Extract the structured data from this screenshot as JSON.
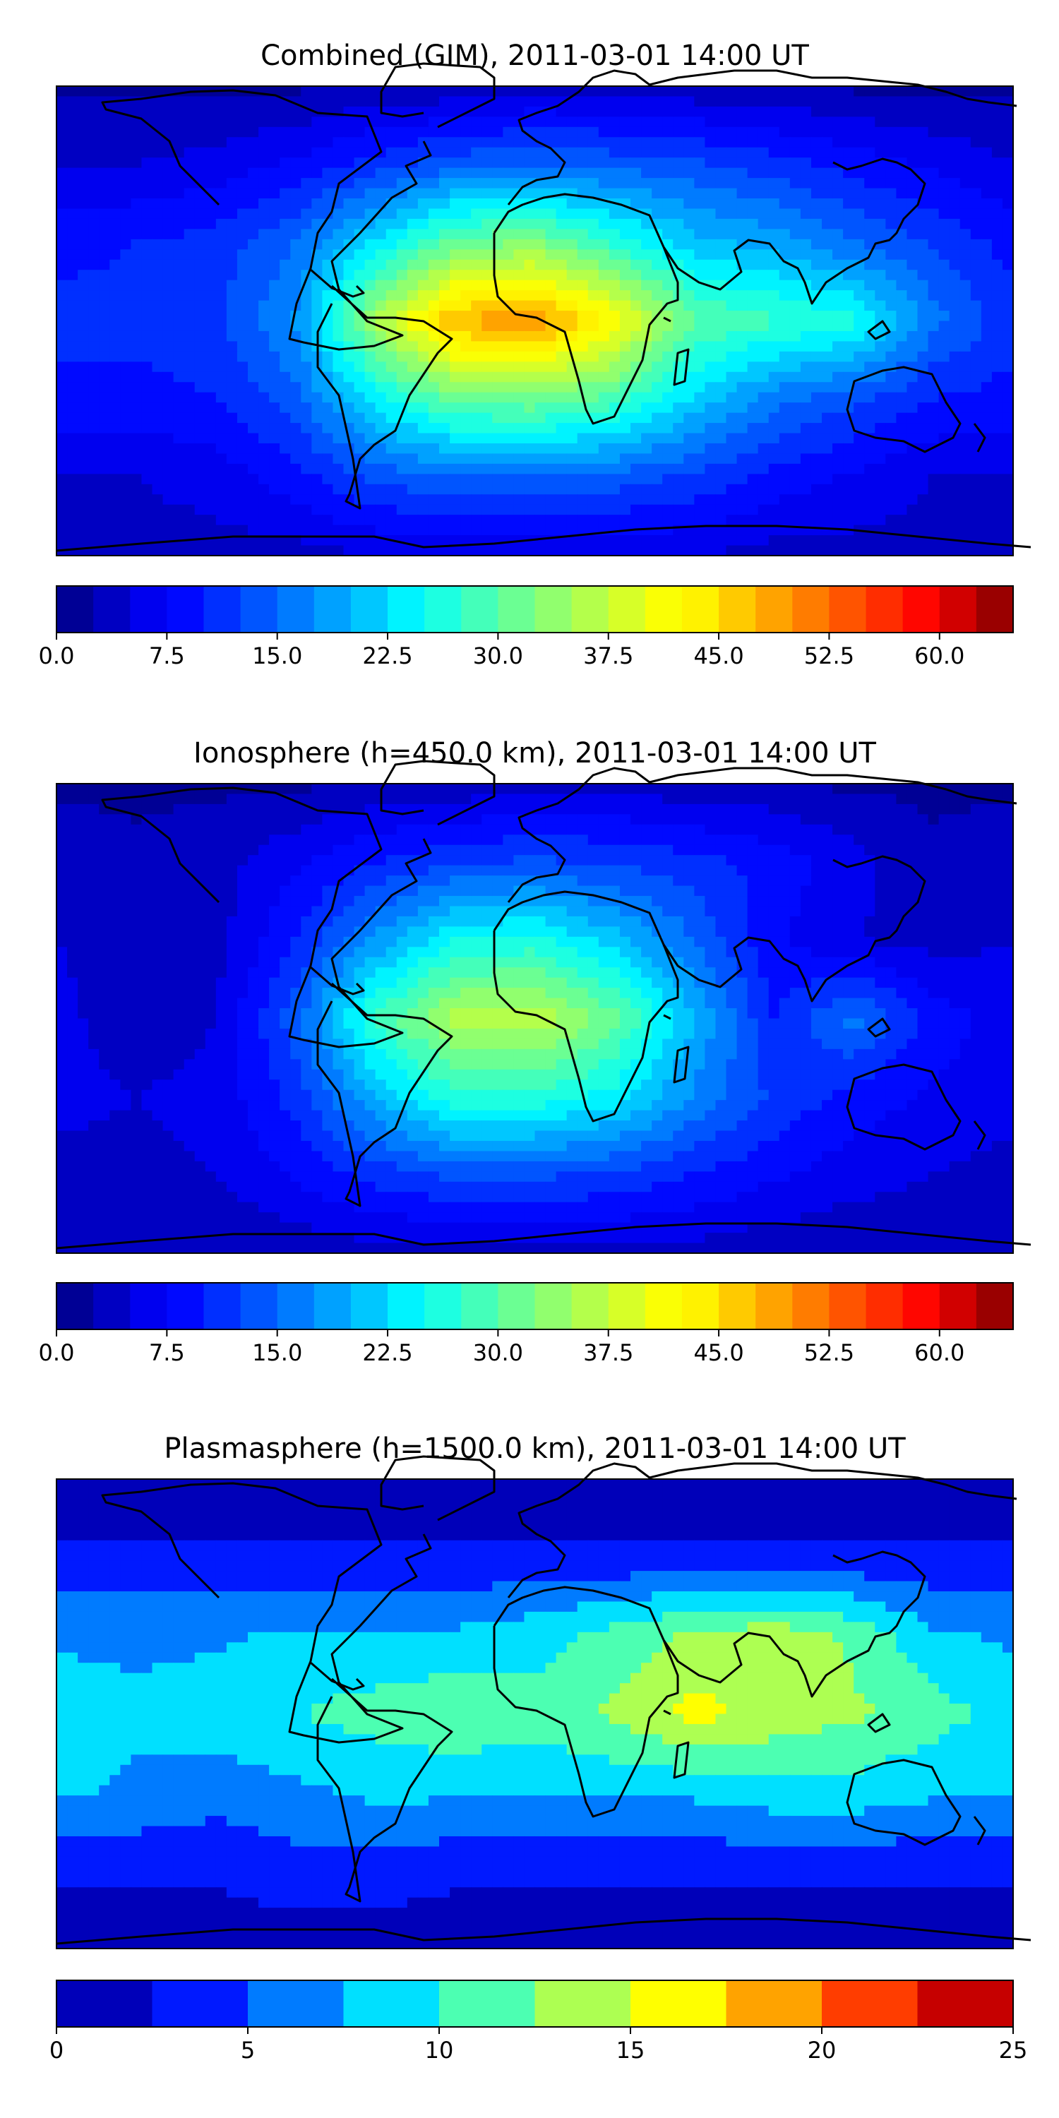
{
  "figure": {
    "panels": [
      {
        "title": "Combined (GIM), 2011-03-01 14:00 UT",
        "colorbar_ticks": [
          "0.0",
          "7.5",
          "15.0",
          "22.5",
          "30.0",
          "37.5",
          "45.0",
          "52.5",
          "60.0"
        ]
      },
      {
        "title": "Ionosphere  (h=450.0 km), 2011-03-01 14:00 UT",
        "colorbar_ticks": [
          "0.0",
          "7.5",
          "15.0",
          "22.5",
          "30.0",
          "37.5",
          "45.0",
          "52.5",
          "60.0"
        ]
      },
      {
        "title": "Plasmasphere (h=1500.0 km), 2011-03-01 14:00 UT",
        "colorbar_ticks": [
          "0",
          "5",
          "10",
          "15",
          "20",
          "25"
        ]
      }
    ]
  },
  "chart_data": [
    {
      "type": "heatmap",
      "title": "Combined (GIM), 2011-03-01 14:00 UT",
      "projection": "equirectangular world map with coastlines",
      "x": [
        -180,
        -150,
        -120,
        -90,
        -60,
        -30,
        0,
        30,
        60,
        90,
        120,
        150,
        180
      ],
      "y": [
        90,
        60,
        30,
        0,
        -30,
        -60,
        -90
      ],
      "values": [
        [
          2,
          2,
          2,
          2,
          3,
          3,
          4,
          4,
          3,
          3,
          2,
          2,
          2
        ],
        [
          5,
          5,
          6,
          8,
          11,
          14,
          15,
          14,
          13,
          11,
          9,
          7,
          5
        ],
        [
          9,
          10,
          11,
          15,
          23,
          31,
          33,
          27,
          21,
          19,
          15,
          12,
          9
        ],
        [
          11,
          11,
          12,
          18,
          35,
          48,
          50,
          42,
          30,
          28,
          26,
          16,
          11
        ],
        [
          9,
          9,
          10,
          14,
          24,
          31,
          32,
          29,
          22,
          16,
          13,
          10,
          9
        ],
        [
          5,
          5,
          6,
          9,
          13,
          15,
          15,
          14,
          12,
          9,
          7,
          5,
          5
        ],
        [
          4,
          4,
          4,
          4,
          5,
          5,
          5,
          5,
          5,
          4,
          4,
          4,
          4
        ]
      ],
      "colorbar": {
        "levels": [
          0,
          2.5,
          5,
          7.5,
          10,
          12.5,
          15,
          17.5,
          20,
          22.5,
          25,
          27.5,
          30,
          32.5,
          35,
          37.5,
          40,
          42.5,
          45,
          47.5,
          50,
          52.5,
          55,
          57.5,
          60,
          62.5,
          65
        ],
        "ticks": [
          0,
          7.5,
          15,
          22.5,
          30,
          37.5,
          45,
          52.5,
          60
        ],
        "colormap": "jet",
        "min": 0,
        "max": 65
      }
    },
    {
      "type": "heatmap",
      "title": "Ionosphere  (h=450.0 km), 2011-03-01 14:00 UT",
      "projection": "equirectangular world map with coastlines",
      "x": [
        -180,
        -150,
        -120,
        -90,
        -60,
        -30,
        0,
        30,
        60,
        90,
        120,
        150,
        180
      ],
      "y": [
        90,
        60,
        30,
        0,
        -30,
        -60,
        -90
      ],
      "values": [
        [
          2,
          2,
          2,
          2,
          3,
          3,
          4,
          4,
          3,
          3,
          2,
          2,
          2
        ],
        [
          4,
          3,
          4,
          7,
          10,
          12,
          13,
          12,
          11,
          9,
          6,
          3,
          4
        ],
        [
          5,
          3,
          4,
          10,
          18,
          25,
          26,
          21,
          15,
          8,
          5,
          4,
          5
        ],
        [
          6,
          3,
          5,
          14,
          28,
          36,
          37,
          31,
          20,
          10,
          16,
          9,
          6
        ],
        [
          6,
          5,
          6,
          11,
          20,
          27,
          27,
          24,
          17,
          12,
          9,
          7,
          6
        ],
        [
          4,
          4,
          5,
          8,
          11,
          13,
          13,
          12,
          10,
          8,
          6,
          5,
          4
        ],
        [
          3,
          3,
          3,
          3,
          4,
          4,
          4,
          4,
          4,
          3,
          3,
          3,
          3
        ]
      ],
      "colorbar": {
        "levels": [
          0,
          2.5,
          5,
          7.5,
          10,
          12.5,
          15,
          17.5,
          20,
          22.5,
          25,
          27.5,
          30,
          32.5,
          35,
          37.5,
          40,
          42.5,
          45,
          47.5,
          50,
          52.5,
          55,
          57.5,
          60,
          62.5,
          65
        ],
        "ticks": [
          0,
          7.5,
          15,
          22.5,
          30,
          37.5,
          45,
          52.5,
          60
        ],
        "colormap": "jet",
        "min": 0,
        "max": 65
      }
    },
    {
      "type": "heatmap",
      "title": "Plasmasphere (h=1500.0 km), 2011-03-01 14:00 UT",
      "projection": "equirectangular world map with coastlines",
      "x": [
        -180,
        -150,
        -120,
        -90,
        -60,
        -30,
        0,
        30,
        60,
        90,
        120,
        150,
        180
      ],
      "y": [
        90,
        60,
        30,
        0,
        -30,
        -60,
        -90
      ],
      "values": [
        [
          1,
          1,
          1,
          1,
          1,
          1,
          1,
          1,
          1,
          1,
          1,
          1,
          1
        ],
        [
          3,
          3,
          3,
          3,
          3,
          3,
          3,
          3,
          3,
          3,
          3,
          3,
          3
        ],
        [
          7,
          7,
          7,
          8,
          8,
          8,
          9,
          11,
          13,
          14,
          12,
          8,
          7
        ],
        [
          9,
          8,
          9,
          10,
          11,
          12,
          11,
          13,
          16,
          14,
          13,
          11,
          9
        ],
        [
          8,
          7,
          6,
          7,
          8,
          8,
          8,
          8,
          8,
          9,
          9,
          8,
          8
        ],
        [
          3,
          3,
          3,
          4,
          4,
          3,
          3,
          3,
          3,
          3,
          3,
          3,
          3
        ],
        [
          1,
          1,
          1,
          1,
          1,
          1,
          1,
          1,
          1,
          1,
          1,
          1,
          1
        ]
      ],
      "colorbar": {
        "levels": [
          0,
          2.5,
          5,
          7.5,
          10,
          12.5,
          15,
          17.5,
          20,
          22.5,
          25
        ],
        "ticks": [
          0,
          5,
          10,
          15,
          20,
          25
        ],
        "colormap": "jet",
        "min": 0,
        "max": 25
      }
    }
  ],
  "jet_colors": [
    {
      "t": 0.0,
      "c": "#00007f"
    },
    {
      "t": 0.11,
      "c": "#0000ff"
    },
    {
      "t": 0.125,
      "c": "#0000ff"
    },
    {
      "t": 0.34,
      "c": "#00d4ff"
    },
    {
      "t": 0.375,
      "c": "#00ffff"
    },
    {
      "t": 0.5,
      "c": "#7fff7f"
    },
    {
      "t": 0.64,
      "c": "#ffff00"
    },
    {
      "t": 0.66,
      "c": "#ffff00"
    },
    {
      "t": 0.89,
      "c": "#ff1400"
    },
    {
      "t": 0.91,
      "c": "#ff0000"
    },
    {
      "t": 1.0,
      "c": "#7f0000"
    }
  ]
}
